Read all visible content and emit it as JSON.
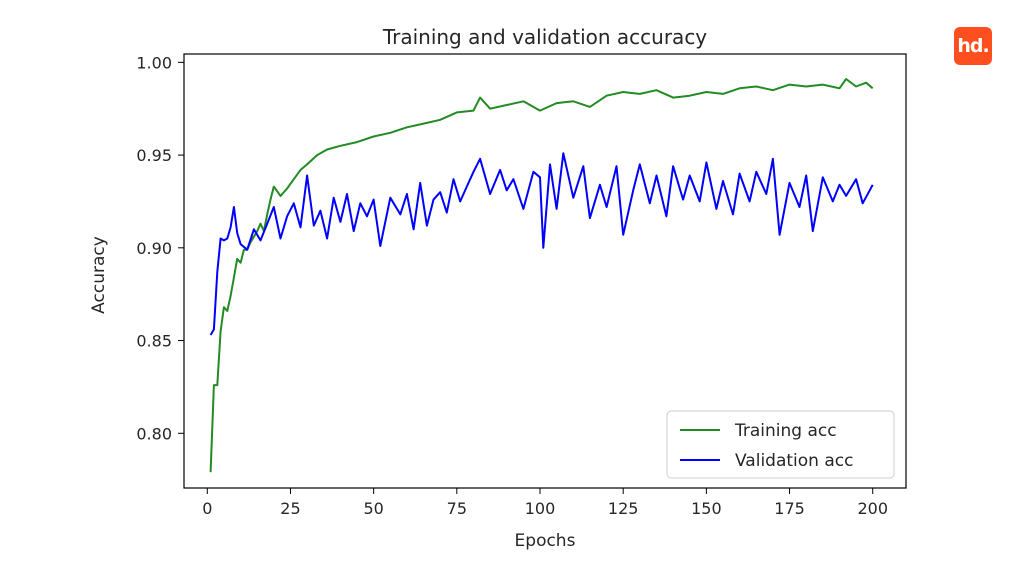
{
  "logo": {
    "text": "hd.",
    "color": "#ff4f1f"
  },
  "chart_data": {
    "type": "line",
    "title": "Training and validation accuracy",
    "xlabel": "Epochs",
    "ylabel": "Accuracy",
    "xlim": [
      -7,
      210
    ],
    "ylim": [
      0.7705,
      1.0045
    ],
    "xticks": [
      0,
      25,
      50,
      75,
      100,
      125,
      150,
      175,
      200
    ],
    "yticks": [
      0.8,
      0.85,
      0.9,
      0.95,
      1.0
    ],
    "ytick_labels": [
      "0.80",
      "0.85",
      "0.90",
      "0.95",
      "1.00"
    ],
    "grid": false,
    "legend_position": "lower-right",
    "series": [
      {
        "name": "Training acc",
        "color": "#228b22",
        "x": [
          1,
          2,
          3,
          4,
          5,
          6,
          7,
          8,
          9,
          10,
          11,
          12,
          13,
          14,
          15,
          16,
          17,
          18,
          19,
          20,
          22,
          24,
          26,
          28,
          30,
          33,
          36,
          40,
          45,
          50,
          55,
          60,
          65,
          70,
          75,
          80,
          82,
          85,
          90,
          95,
          100,
          105,
          110,
          115,
          120,
          125,
          130,
          135,
          140,
          145,
          150,
          155,
          160,
          165,
          170,
          175,
          180,
          185,
          190,
          192,
          195,
          198,
          200
        ],
        "values": [
          0.779,
          0.826,
          0.826,
          0.855,
          0.868,
          0.866,
          0.874,
          0.884,
          0.894,
          0.892,
          0.899,
          0.899,
          0.903,
          0.906,
          0.909,
          0.913,
          0.909,
          0.918,
          0.926,
          0.933,
          0.928,
          0.932,
          0.937,
          0.942,
          0.945,
          0.95,
          0.953,
          0.955,
          0.957,
          0.96,
          0.962,
          0.965,
          0.967,
          0.969,
          0.973,
          0.974,
          0.981,
          0.975,
          0.977,
          0.979,
          0.974,
          0.978,
          0.979,
          0.976,
          0.982,
          0.984,
          0.983,
          0.985,
          0.981,
          0.982,
          0.984,
          0.983,
          0.986,
          0.987,
          0.985,
          0.988,
          0.987,
          0.988,
          0.986,
          0.991,
          0.987,
          0.989,
          0.986
        ]
      },
      {
        "name": "Validation acc",
        "color": "#0000ff",
        "x": [
          1,
          2,
          3,
          4,
          5,
          6,
          7,
          8,
          9,
          10,
          12,
          14,
          16,
          18,
          20,
          22,
          24,
          26,
          28,
          30,
          32,
          34,
          36,
          38,
          40,
          42,
          44,
          46,
          48,
          50,
          52,
          55,
          58,
          60,
          62,
          64,
          66,
          68,
          70,
          72,
          74,
          76,
          78,
          80,
          82,
          85,
          88,
          90,
          92,
          95,
          98,
          100,
          101,
          103,
          105,
          107,
          110,
          113,
          115,
          118,
          120,
          123,
          125,
          128,
          130,
          133,
          135,
          138,
          140,
          143,
          145,
          148,
          150,
          153,
          155,
          158,
          160,
          163,
          165,
          168,
          170,
          172,
          175,
          178,
          180,
          182,
          185,
          188,
          190,
          192,
          195,
          197,
          200
        ],
        "values": [
          0.853,
          0.856,
          0.887,
          0.905,
          0.904,
          0.905,
          0.911,
          0.922,
          0.908,
          0.902,
          0.899,
          0.91,
          0.904,
          0.913,
          0.922,
          0.905,
          0.917,
          0.924,
          0.911,
          0.939,
          0.912,
          0.92,
          0.905,
          0.927,
          0.914,
          0.929,
          0.909,
          0.924,
          0.917,
          0.926,
          0.901,
          0.927,
          0.918,
          0.929,
          0.91,
          0.935,
          0.912,
          0.926,
          0.93,
          0.919,
          0.937,
          0.925,
          0.933,
          0.941,
          0.948,
          0.929,
          0.942,
          0.931,
          0.937,
          0.921,
          0.941,
          0.938,
          0.9,
          0.945,
          0.921,
          0.951,
          0.927,
          0.944,
          0.916,
          0.934,
          0.922,
          0.944,
          0.907,
          0.931,
          0.945,
          0.924,
          0.939,
          0.917,
          0.944,
          0.926,
          0.939,
          0.925,
          0.946,
          0.921,
          0.936,
          0.918,
          0.94,
          0.925,
          0.941,
          0.929,
          0.948,
          0.907,
          0.935,
          0.922,
          0.939,
          0.909,
          0.938,
          0.925,
          0.934,
          0.928,
          0.937,
          0.924,
          0.934
        ]
      }
    ]
  }
}
